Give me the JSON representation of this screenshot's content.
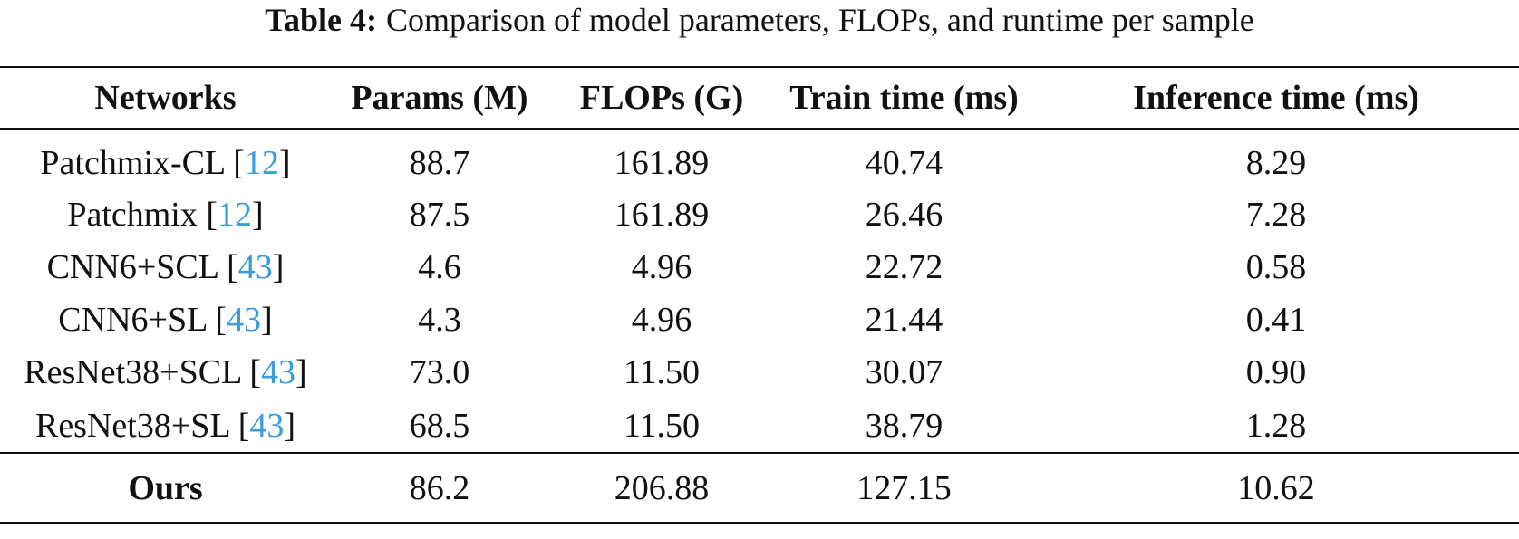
{
  "caption": {
    "label": "Table 4:",
    "text": "Comparison of model parameters, FLOPs, and runtime per sample"
  },
  "table": {
    "headers": [
      "Networks",
      "Params (M)",
      "FLOPs (G)",
      "Train time (ms)",
      "Inference time (ms)"
    ],
    "rows": [
      {
        "network": "Patchmix-CL",
        "cite": "12",
        "params": "88.7",
        "flops": "161.89",
        "train": "40.74",
        "inference": "8.29"
      },
      {
        "network": "Patchmix",
        "cite": "12",
        "params": "87.5",
        "flops": "161.89",
        "train": "26.46",
        "inference": "7.28"
      },
      {
        "network": "CNN6+SCL",
        "cite": "43",
        "params": "4.6",
        "flops": "4.96",
        "train": "22.72",
        "inference": "0.58"
      },
      {
        "network": "CNN6+SL",
        "cite": "43",
        "params": "4.3",
        "flops": "4.96",
        "train": "21.44",
        "inference": "0.41"
      },
      {
        "network": "ResNet38+SCL",
        "cite": "43",
        "params": "73.0",
        "flops": "11.50",
        "train": "30.07",
        "inference": "0.90"
      },
      {
        "network": "ResNet38+SL",
        "cite": "43",
        "params": "68.5",
        "flops": "11.50",
        "train": "38.79",
        "inference": "1.28"
      }
    ],
    "ours": {
      "network": "Ours",
      "params": "86.2",
      "flops": "206.88",
      "train": "127.15",
      "inference": "10.62"
    }
  },
  "colors": {
    "citation_link": "#3a9fd6",
    "text": "#111111"
  }
}
